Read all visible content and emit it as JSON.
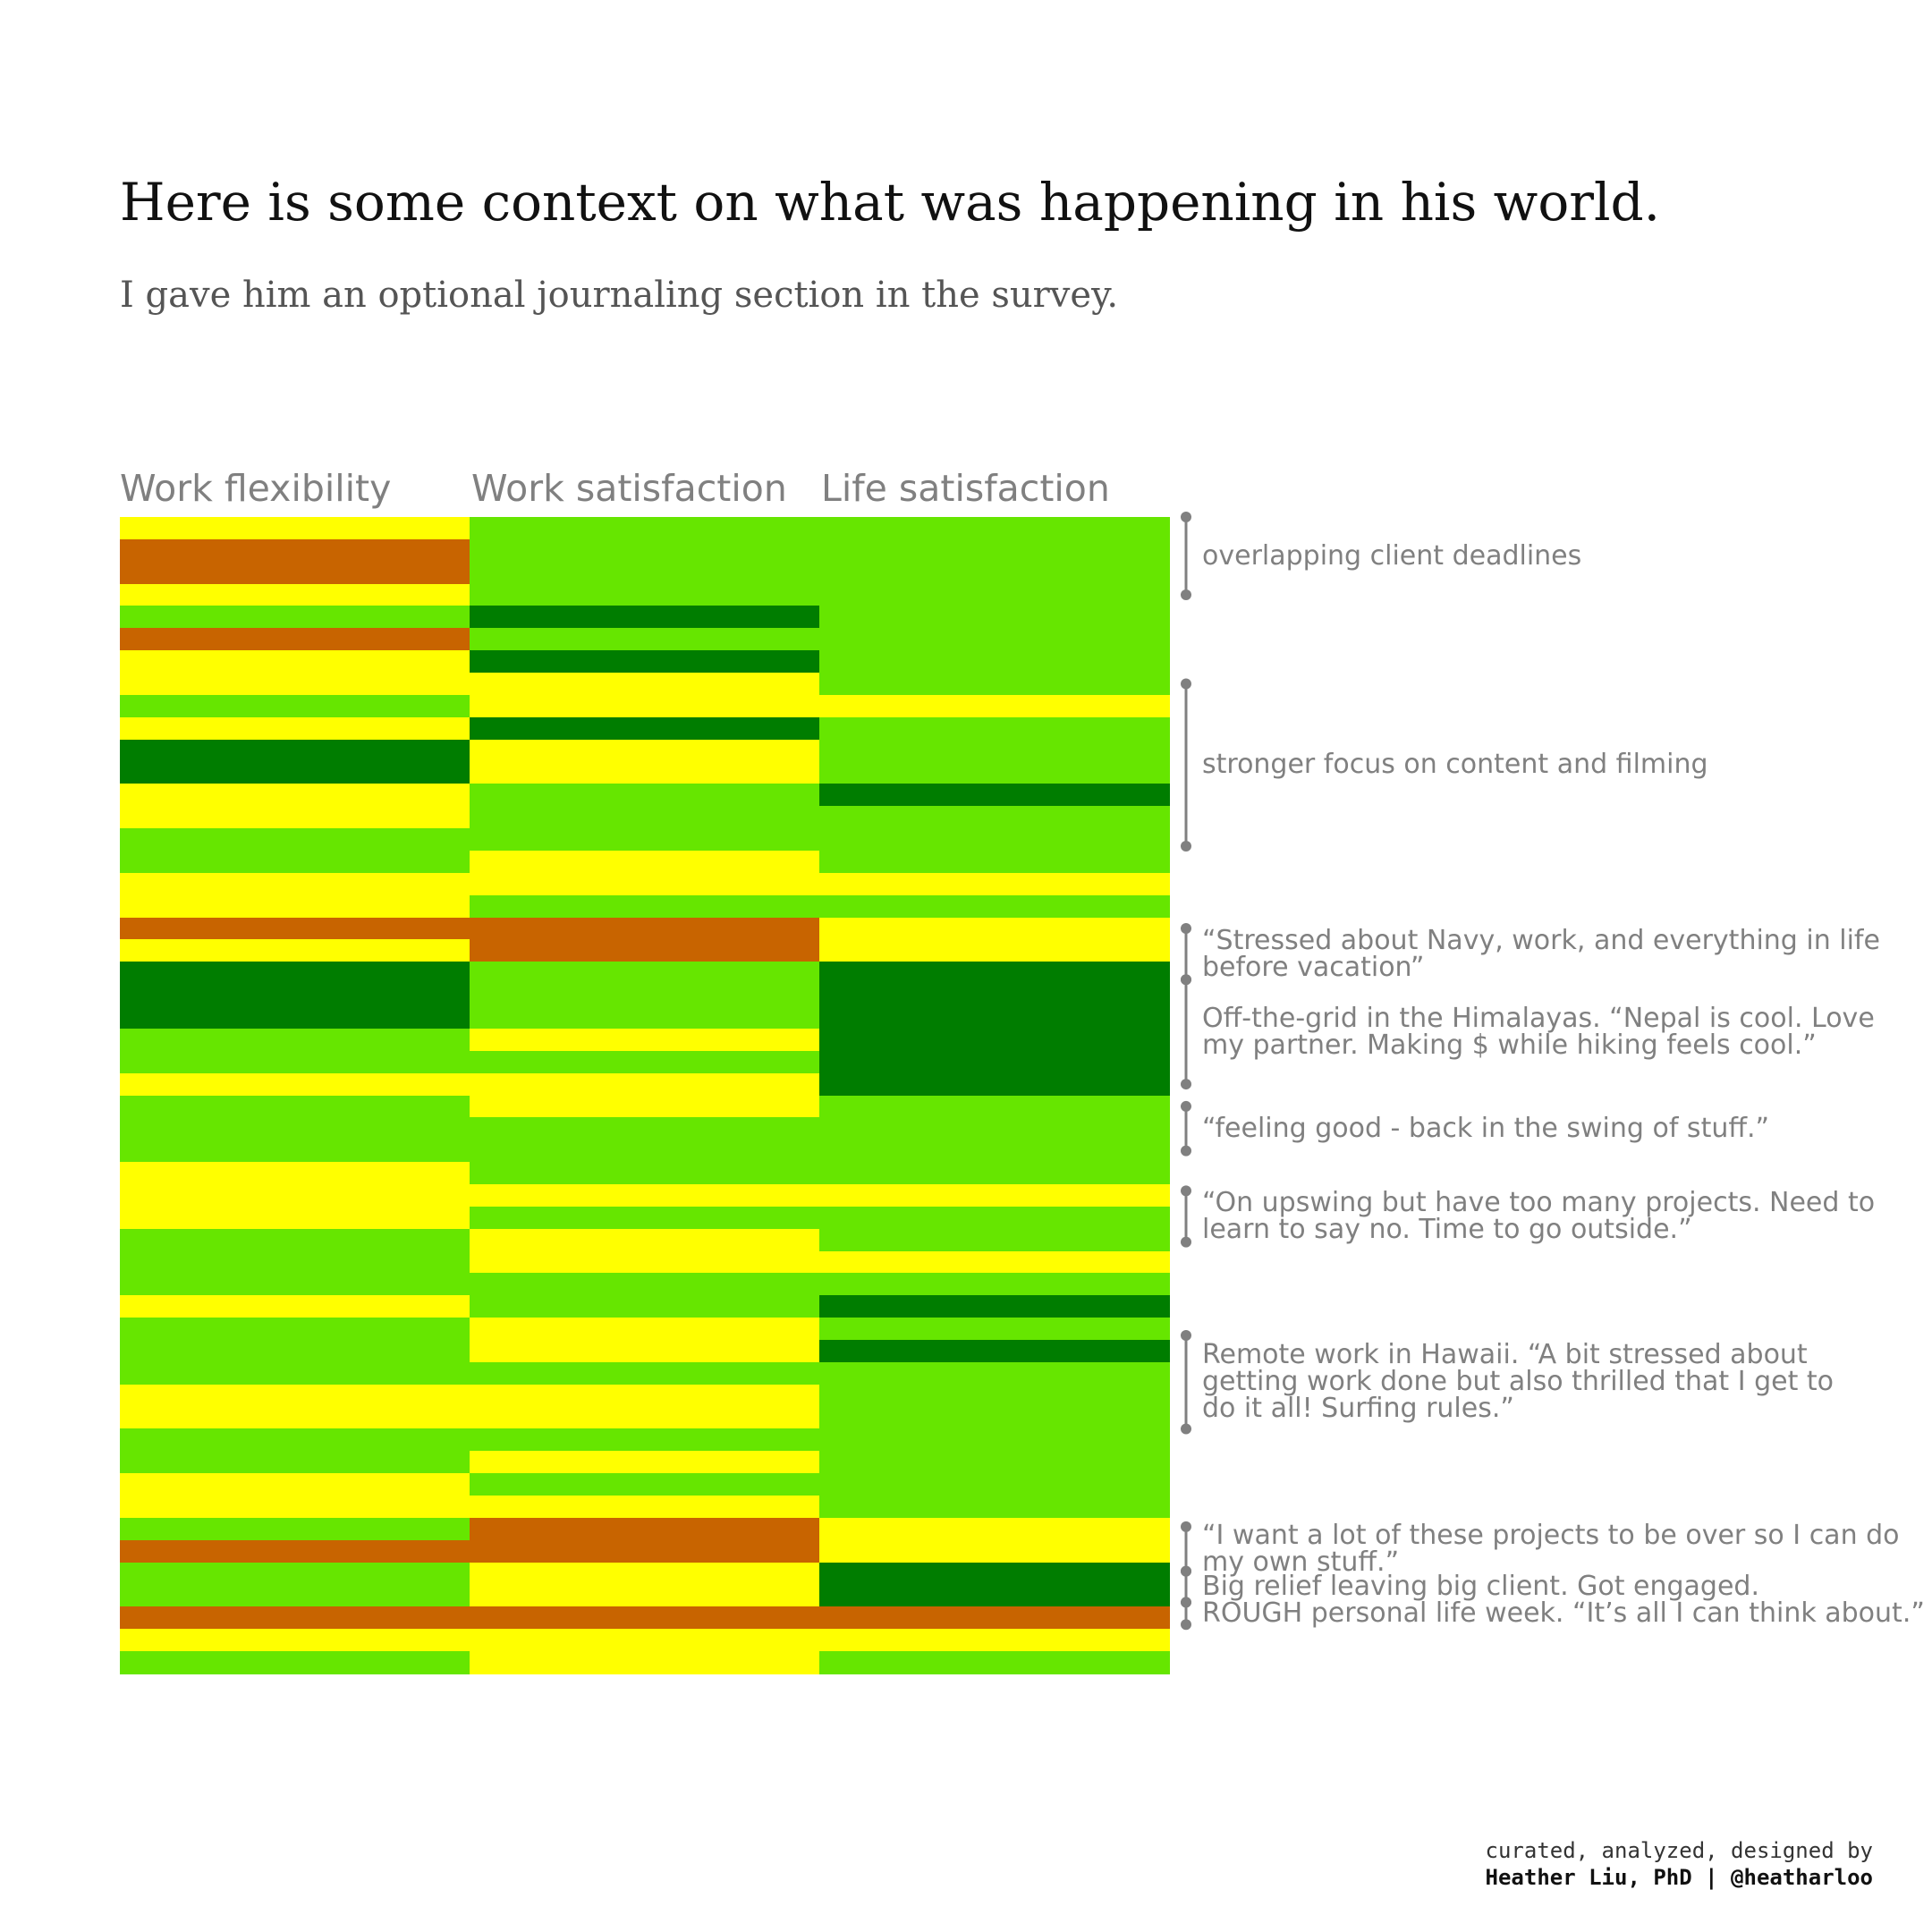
{
  "title": "Here is some context on what was happening in his world.",
  "subtitle": "I gave him an optional journaling section in the survey.",
  "credit": {
    "line1": "curated, analyzed, designed by",
    "line2": "Heather Liu, PhD | @heatharloo"
  },
  "colors": {
    "1": "#c86400",
    "2": "#ffff00",
    "3": "#66e600",
    "4": "#007d00"
  },
  "chart_data": {
    "type": "heatmap",
    "columns": [
      "Work flexibility",
      "Work satisfaction",
      "Life satisfaction"
    ],
    "rows": [
      [
        2,
        3,
        3
      ],
      [
        1,
        3,
        3
      ],
      [
        1,
        3,
        3
      ],
      [
        2,
        3,
        3
      ],
      [
        3,
        4,
        3
      ],
      [
        1,
        3,
        3
      ],
      [
        2,
        4,
        3
      ],
      [
        2,
        2,
        3
      ],
      [
        3,
        2,
        2
      ],
      [
        2,
        4,
        3
      ],
      [
        4,
        2,
        3
      ],
      [
        4,
        2,
        3
      ],
      [
        2,
        3,
        4
      ],
      [
        2,
        3,
        3
      ],
      [
        3,
        3,
        3
      ],
      [
        3,
        2,
        3
      ],
      [
        2,
        2,
        2
      ],
      [
        2,
        3,
        3
      ],
      [
        1,
        1,
        2
      ],
      [
        2,
        1,
        2
      ],
      [
        4,
        3,
        4
      ],
      [
        4,
        3,
        4
      ],
      [
        4,
        3,
        4
      ],
      [
        3,
        2,
        4
      ],
      [
        3,
        3,
        4
      ],
      [
        2,
        2,
        4
      ],
      [
        3,
        2,
        3
      ],
      [
        3,
        3,
        3
      ],
      [
        3,
        3,
        3
      ],
      [
        2,
        3,
        3
      ],
      [
        2,
        2,
        2
      ],
      [
        2,
        3,
        3
      ],
      [
        3,
        2,
        3
      ],
      [
        3,
        2,
        2
      ],
      [
        3,
        3,
        3
      ],
      [
        2,
        3,
        4
      ],
      [
        3,
        2,
        3
      ],
      [
        3,
        2,
        4
      ],
      [
        3,
        3,
        3
      ],
      [
        2,
        2,
        3
      ],
      [
        2,
        2,
        3
      ],
      [
        3,
        3,
        3
      ],
      [
        3,
        2,
        3
      ],
      [
        2,
        3,
        3
      ],
      [
        2,
        2,
        3
      ],
      [
        3,
        1,
        2
      ],
      [
        1,
        1,
        2
      ],
      [
        3,
        2,
        4
      ],
      [
        3,
        2,
        4
      ],
      [
        1,
        1,
        1
      ],
      [
        2,
        2,
        2
      ],
      [
        3,
        2,
        3
      ]
    ],
    "annotations": [
      {
        "text": "overlapping client deadlines",
        "start": 0,
        "end": 3.5
      },
      {
        "text": "stronger focus on content and filming",
        "start": 7.5,
        "end": 14.8
      },
      {
        "text": "“Stressed about Navy, work, and everything in life\nbefore vacation”",
        "start": 18.5,
        "end": 20.8
      },
      {
        "text": "Off-the-grid in the Himalayas. “Nepal is cool. Love\nmy partner. Making $ while hiking feels cool.”",
        "start": 20.8,
        "end": 25.5
      },
      {
        "text": "“feeling good - back in the swing of stuff.”",
        "start": 26.5,
        "end": 28.5
      },
      {
        "text": "“On upswing but have too many projects. Need to\nlearn to say no. Time to go outside.”",
        "start": 30.3,
        "end": 32.6
      },
      {
        "text": "Remote work in Hawaii. “A bit stressed about\ngetting work done but also thrilled that I get to\ndo it all! Surfing rules.”",
        "start": 36.8,
        "end": 41.0
      },
      {
        "text": "“I want a lot of these projects to be over so I can do\nmy own stuff.”",
        "start": 45.4,
        "end": 47.4
      },
      {
        "text": "Big relief leaving big client. Got engaged.",
        "start": 47.4,
        "end": 48.8
      },
      {
        "text": "ROUGH personal life week. “It’s all I can think about.”",
        "start": 48.8,
        "end": 49.8
      }
    ]
  }
}
